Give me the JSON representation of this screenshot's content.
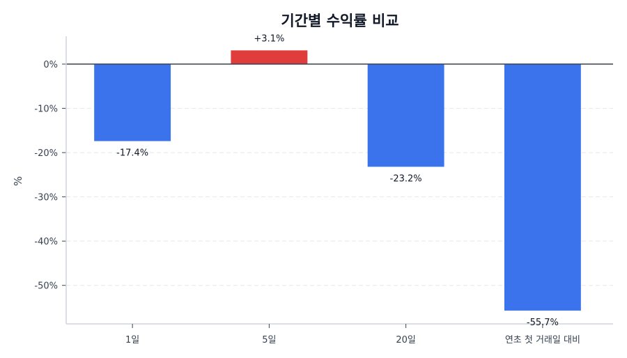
{
  "chart_data": {
    "type": "bar",
    "title": "기간별 수익률 비교",
    "xlabel": "",
    "ylabel": "%",
    "categories": [
      "1일",
      "5일",
      "20일",
      "연초 첫 거래일 대비"
    ],
    "values": [
      -17.4,
      3.1,
      -23.2,
      -55.7
    ],
    "value_labels": [
      "-17.4%",
      "+3.1%",
      "-23.2%",
      "-55.7%"
    ],
    "ylim": [
      -58.7,
      6.3
    ],
    "yticks": [
      0,
      -10,
      -20,
      -30,
      -40,
      -50
    ],
    "ytick_labels": [
      "0%",
      "-10%",
      "-20%",
      "-30%",
      "-40%",
      "-50%"
    ],
    "grid": true,
    "legend": null,
    "colors": {
      "positive": "#e03c3c",
      "negative": "#3b73ec",
      "zero_line": "#374151",
      "grid": "#e5e7eb",
      "axis": "#d1d5db"
    }
  }
}
